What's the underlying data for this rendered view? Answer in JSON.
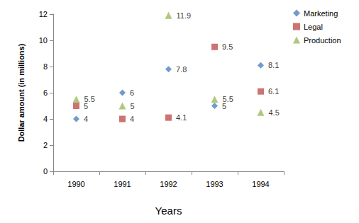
{
  "chart_data": {
    "type": "scatter",
    "x_label": "Years",
    "y_label": "Dollar amount (in millions)",
    "categories": [
      "1990",
      "1991",
      "1992",
      "1993",
      "1994"
    ],
    "series": [
      {
        "name": "Marketing",
        "color": "#4f81bd",
        "marker": "diamond",
        "values": [
          4,
          6,
          7.8,
          5,
          8.1
        ]
      },
      {
        "name": "Legal",
        "color": "#c0504d",
        "marker": "square",
        "values": [
          5,
          4,
          4.1,
          9.5,
          6.1
        ]
      },
      {
        "name": "Production",
        "color": "#9bbb59",
        "marker": "triangle",
        "values": [
          5.5,
          5,
          11.9,
          5.5,
          4.5
        ]
      }
    ],
    "ylim": [
      0,
      12
    ],
    "yticks": [
      0,
      2,
      4,
      6,
      8,
      10,
      12
    ],
    "grid": false,
    "legend": "upper right",
    "data_labels": true
  }
}
